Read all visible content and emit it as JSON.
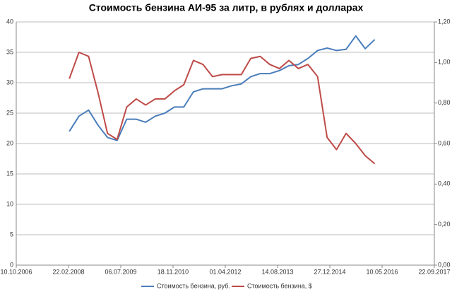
{
  "chart_data": {
    "type": "line",
    "title": "Стоимость бензина АИ-95 за литр, в рублях и долларах",
    "x": [
      "2008-03-01",
      "2008-06-01",
      "2008-09-01",
      "2008-12-01",
      "2009-03-01",
      "2009-06-01",
      "2009-09-01",
      "2009-12-01",
      "2010-03-01",
      "2010-06-01",
      "2010-09-01",
      "2010-12-01",
      "2011-03-01",
      "2011-06-01",
      "2011-09-01",
      "2011-12-01",
      "2012-03-01",
      "2012-06-01",
      "2012-09-01",
      "2012-12-01",
      "2013-03-01",
      "2013-06-01",
      "2013-09-01",
      "2013-12-01",
      "2014-03-01",
      "2014-06-01",
      "2014-09-01",
      "2014-12-01",
      "2015-03-01",
      "2015-06-01",
      "2015-09-01",
      "2015-12-01",
      "2016-03-01"
    ],
    "series": [
      {
        "name": "Стоимость бензина, руб.",
        "color": "#4a7ebb",
        "axis": "y",
        "values": [
          22,
          24.5,
          25.5,
          23,
          21,
          20.5,
          24,
          24,
          23.5,
          24.5,
          25,
          26,
          26,
          28.5,
          29,
          29,
          29,
          29.5,
          29.8,
          31,
          31.5,
          31.5,
          32,
          32.8,
          33,
          34,
          35.3,
          35.7,
          35.3,
          35.5,
          37.7,
          35.6,
          37.1
        ]
      },
      {
        "name": "Стоимость бензина, $",
        "color": "#be4b48",
        "axis": "y2",
        "values": [
          0.92,
          1.05,
          1.03,
          0.85,
          0.65,
          0.62,
          0.78,
          0.82,
          0.79,
          0.82,
          0.82,
          0.86,
          0.89,
          1.01,
          0.99,
          0.93,
          0.94,
          0.94,
          0.94,
          1.02,
          1.03,
          0.99,
          0.97,
          1.01,
          0.97,
          0.99,
          0.93,
          0.63,
          0.57,
          0.65,
          0.6,
          0.54,
          0.5
        ]
      }
    ],
    "xlim": [
      "2006-10-10",
      "2017-09-22"
    ],
    "xticks": [
      {
        "value": "2006-10-10",
        "label": "10.10.2006"
      },
      {
        "value": "2008-02-22",
        "label": "22.02.2008"
      },
      {
        "value": "2009-07-06",
        "label": "06.07.2009"
      },
      {
        "value": "2010-11-18",
        "label": "18.11.2010"
      },
      {
        "value": "2012-04-01",
        "label": "01.04.2012"
      },
      {
        "value": "2013-08-14",
        "label": "14.08.2013"
      },
      {
        "value": "2014-12-27",
        "label": "27.12.2014"
      },
      {
        "value": "2016-05-10",
        "label": "10.05.2016"
      },
      {
        "value": "2017-09-22",
        "label": "22.09.2017"
      }
    ],
    "ylim": [
      0,
      40
    ],
    "yticks": [
      0,
      5,
      10,
      15,
      20,
      25,
      30,
      35,
      40
    ],
    "y2lim": [
      0,
      1.2
    ],
    "y2ticks": [
      {
        "value": 0,
        "label": "0,00"
      },
      {
        "value": 0.2,
        "label": "0,20"
      },
      {
        "value": 0.4,
        "label": "0,40"
      },
      {
        "value": 0.6,
        "label": "0,60"
      },
      {
        "value": 0.8,
        "label": "0,80"
      },
      {
        "value": 1,
        "label": "1,00"
      },
      {
        "value": 1.2,
        "label": "1,20"
      }
    ],
    "grid": true,
    "legend": "bottom"
  }
}
